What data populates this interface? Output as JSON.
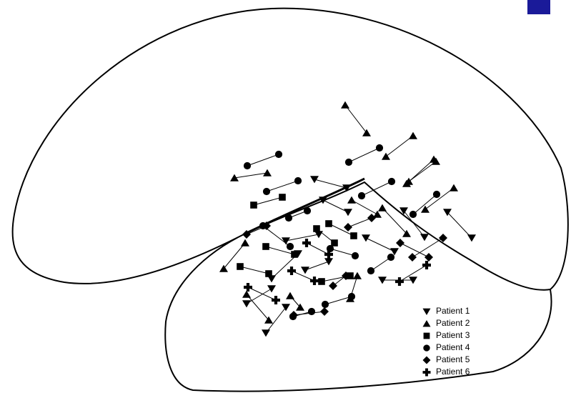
{
  "legend": {
    "entries": [
      "Patient 1",
      "Patient 2",
      "Patient 3",
      "Patient 4",
      "Patient 5",
      "Patient 6"
    ]
  }
}
